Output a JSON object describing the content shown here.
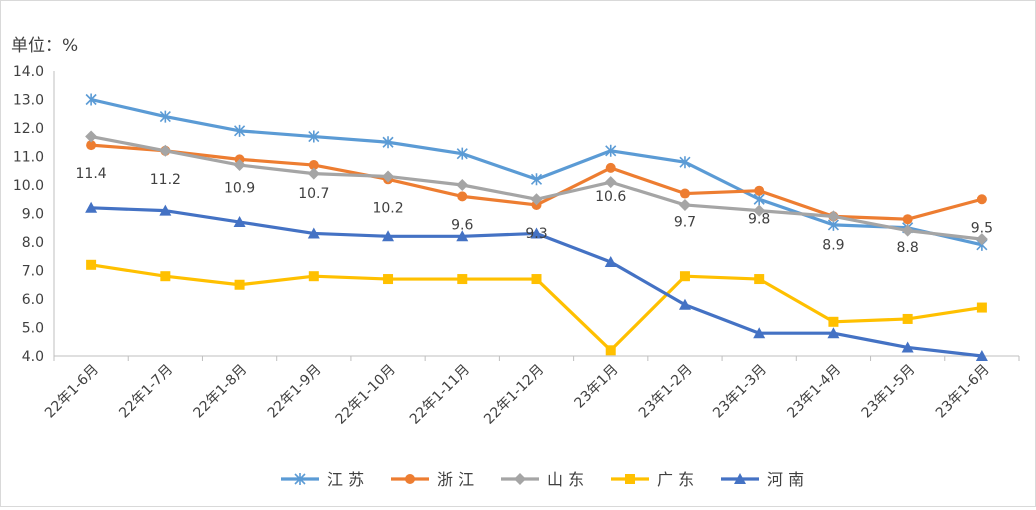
{
  "chart_data": {
    "type": "line",
    "unit_label": "单位：%",
    "categories": [
      "22年1-6月",
      "22年1-7月",
      "22年1-8月",
      "22年1-9月",
      "22年1-10月",
      "22年1-11月",
      "22年1-12月",
      "23年1月",
      "23年1-2月",
      "23年1-3月",
      "23年1-4月",
      "23年1-5月",
      "23年1-6月"
    ],
    "ylim": [
      4.0,
      14.0
    ],
    "yticks": [
      "4.0",
      "5.0",
      "6.0",
      "7.0",
      "8.0",
      "9.0",
      "10.0",
      "11.0",
      "12.0",
      "13.0",
      "14.0"
    ],
    "grid": false,
    "legend_position": "bottom",
    "series": [
      {
        "name": "江 苏",
        "color": "#5b9bd5",
        "marker": "asterisk",
        "values": [
          13.0,
          12.4,
          11.9,
          11.7,
          11.5,
          11.1,
          10.2,
          11.2,
          10.8,
          9.5,
          8.6,
          8.5,
          7.9
        ]
      },
      {
        "name": "浙 江",
        "color": "#ed7d31",
        "marker": "circle",
        "values": [
          11.4,
          11.2,
          10.9,
          10.7,
          10.2,
          9.6,
          9.3,
          10.6,
          9.7,
          9.8,
          8.9,
          8.8,
          9.5
        ],
        "labels": [
          "11.4",
          "11.2",
          "10.9",
          "10.7",
          "10.2",
          "9.6",
          "9.3",
          "10.6",
          "9.7",
          "9.8",
          "8.9",
          "8.8",
          "9.5"
        ]
      },
      {
        "name": "山 东",
        "color": "#a5a5a5",
        "marker": "diamond",
        "values": [
          11.7,
          11.2,
          10.7,
          10.4,
          10.3,
          10.0,
          9.5,
          10.1,
          9.3,
          9.1,
          8.9,
          8.4,
          8.1
        ]
      },
      {
        "name": "广 东",
        "color": "#ffc000",
        "marker": "square",
        "values": [
          7.2,
          6.8,
          6.5,
          6.8,
          6.7,
          6.7,
          6.7,
          4.2,
          6.8,
          6.7,
          5.2,
          5.3,
          5.7
        ]
      },
      {
        "name": "河 南",
        "color": "#4472c4",
        "marker": "triangle",
        "values": [
          9.2,
          9.1,
          8.7,
          8.3,
          8.2,
          8.2,
          8.3,
          7.3,
          5.8,
          4.8,
          4.8,
          4.3,
          4.0
        ]
      }
    ]
  }
}
